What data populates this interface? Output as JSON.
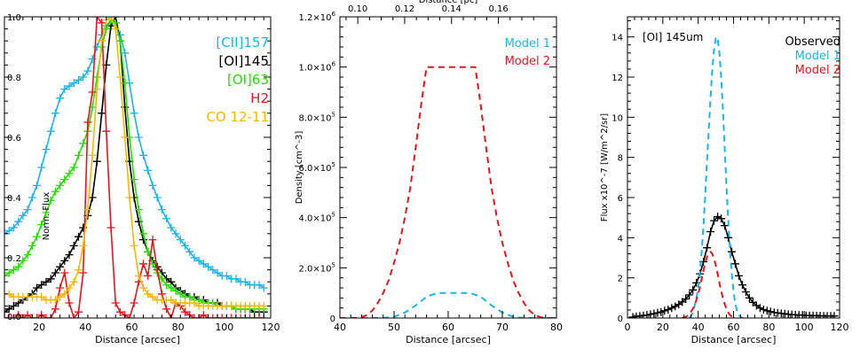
{
  "chart_data": [
    {
      "type": "line",
      "panel": "left",
      "xlabel": "Distance [arcsec]",
      "ylabel": "Norm. Flux",
      "xlim": [
        5,
        120
      ],
      "ylim": [
        0,
        1.0
      ],
      "xticks": [
        20,
        40,
        60,
        80,
        100,
        120
      ],
      "yticks": [
        0.0,
        0.2,
        0.4,
        0.6,
        0.8,
        1.0
      ],
      "ytick_labels": [
        "0.0",
        "0.2",
        "0.4",
        "0.6",
        "0.8",
        "1.0"
      ],
      "grid": false,
      "legend_position": "top-right",
      "series": [
        {
          "name": "[CII]157",
          "color": "#1ab5ec",
          "markers": true,
          "x": [
            5,
            7,
            9,
            11,
            13,
            15,
            17,
            19,
            21,
            23,
            25,
            27,
            29,
            31,
            33,
            35,
            37,
            39,
            41,
            43,
            45,
            47,
            49,
            51,
            53,
            55,
            57,
            59,
            61,
            63,
            65,
            67,
            69,
            71,
            73,
            75,
            77,
            79,
            81,
            83,
            85,
            87,
            89,
            91,
            93,
            95,
            97,
            99,
            101,
            103,
            105,
            107,
            109,
            111,
            113,
            115,
            117
          ],
          "y": [
            0.28,
            0.29,
            0.3,
            0.32,
            0.34,
            0.36,
            0.4,
            0.44,
            0.5,
            0.56,
            0.62,
            0.68,
            0.73,
            0.76,
            0.77,
            0.78,
            0.79,
            0.8,
            0.82,
            0.86,
            0.9,
            0.94,
            0.97,
            0.99,
            0.98,
            0.94,
            0.88,
            0.78,
            0.68,
            0.6,
            0.54,
            0.49,
            0.44,
            0.4,
            0.36,
            0.33,
            0.3,
            0.28,
            0.26,
            0.24,
            0.22,
            0.2,
            0.19,
            0.18,
            0.17,
            0.16,
            0.15,
            0.14,
            0.14,
            0.13,
            0.13,
            0.12,
            0.12,
            0.11,
            0.11,
            0.11,
            0.1
          ]
        },
        {
          "name": "[OI]145",
          "color": "#000000",
          "markers": true,
          "x": [
            5,
            7,
            9,
            11,
            13,
            15,
            17,
            19,
            21,
            23,
            25,
            27,
            29,
            31,
            33,
            35,
            37,
            39,
            41,
            43,
            45,
            47,
            49,
            51,
            53,
            55,
            57,
            59,
            61,
            63,
            65,
            67,
            69,
            71,
            73,
            75,
            77,
            79,
            81,
            83,
            85,
            87,
            89,
            91,
            93,
            95,
            97,
            99,
            101,
            103,
            105,
            107,
            109,
            111,
            113,
            115,
            117
          ],
          "y": [
            0.02,
            0.03,
            0.04,
            0.05,
            0.06,
            0.07,
            0.08,
            0.1,
            0.11,
            0.12,
            0.13,
            0.15,
            0.17,
            0.19,
            0.21,
            0.24,
            0.27,
            0.3,
            0.34,
            0.4,
            0.52,
            0.68,
            0.84,
            0.97,
            1.0,
            0.92,
            0.7,
            0.52,
            0.4,
            0.32,
            0.26,
            0.22,
            0.19,
            0.17,
            0.15,
            0.13,
            0.12,
            0.1,
            0.09,
            0.08,
            0.07,
            0.07,
            0.06,
            0.06,
            0.05,
            0.05,
            0.05,
            0.04,
            0.04,
            0.04,
            0.03,
            0.03,
            0.03,
            0.03,
            0.02,
            0.02,
            0.02
          ]
        },
        {
          "name": "[OI]63",
          "color": "#22e000",
          "markers": true,
          "x": [
            5,
            7,
            9,
            11,
            13,
            15,
            17,
            19,
            21,
            23,
            25,
            27,
            29,
            31,
            33,
            35,
            37,
            39,
            41,
            43,
            45,
            47,
            49,
            51,
            53,
            55,
            57,
            59,
            61,
            63,
            65,
            67,
            69,
            71,
            73,
            75,
            77,
            79,
            81,
            83,
            85,
            87,
            89,
            91,
            93,
            95,
            97,
            99,
            101,
            103,
            105,
            107,
            109,
            111,
            113,
            115,
            117
          ],
          "y": [
            0.14,
            0.15,
            0.16,
            0.17,
            0.19,
            0.21,
            0.24,
            0.27,
            0.31,
            0.35,
            0.39,
            0.42,
            0.44,
            0.46,
            0.48,
            0.5,
            0.54,
            0.58,
            0.62,
            0.7,
            0.8,
            0.9,
            0.96,
            0.99,
            0.98,
            0.92,
            0.78,
            0.6,
            0.46,
            0.36,
            0.28,
            0.22,
            0.18,
            0.15,
            0.13,
            0.11,
            0.1,
            0.09,
            0.08,
            0.07,
            0.07,
            0.06,
            0.06,
            0.05,
            0.05,
            0.05,
            0.04,
            0.04,
            0.04,
            0.04,
            0.03,
            0.03,
            0.03,
            0.03,
            0.03,
            0.03,
            0.03
          ]
        },
        {
          "name": "H2",
          "color": "#e8151d",
          "markers": true,
          "x": [
            5,
            7,
            9,
            11,
            13,
            15,
            17,
            19,
            21,
            23,
            25,
            27,
            29,
            31,
            33,
            35,
            37,
            39,
            41,
            43,
            45,
            47,
            49,
            51,
            53,
            55,
            57,
            59,
            61,
            63,
            65,
            67,
            69,
            71,
            73,
            75,
            77,
            79,
            81,
            83,
            85,
            87,
            89,
            91,
            93,
            95,
            97,
            99,
            101,
            103,
            105,
            107,
            109,
            111,
            113,
            115,
            117
          ],
          "y": [
            0.0,
            0.0,
            0.0,
            0.01,
            0.0,
            0.01,
            0.0,
            0.0,
            0.01,
            0.0,
            0.0,
            0.03,
            0.1,
            0.15,
            0.05,
            0.0,
            0.02,
            0.15,
            0.65,
            0.75,
            1.0,
            0.98,
            0.62,
            0.3,
            0.05,
            0.02,
            0.01,
            0.0,
            0.05,
            0.12,
            0.18,
            0.14,
            0.26,
            0.16,
            0.08,
            0.03,
            0.0,
            0.05,
            0.04,
            0.02,
            0.01,
            0.0,
            0.0,
            0.01,
            0.0,
            0.0,
            0.0,
            0.0,
            0.0,
            0.0,
            0.0,
            0.0,
            0.0,
            0.0,
            0.0,
            0.0,
            0.0
          ]
        },
        {
          "name": "CO 12-11",
          "color": "#f5b800",
          "markers": true,
          "x": [
            5,
            7,
            9,
            11,
            13,
            15,
            17,
            19,
            21,
            23,
            25,
            27,
            29,
            31,
            33,
            35,
            37,
            39,
            41,
            43,
            45,
            47,
            49,
            51,
            53,
            55,
            57,
            59,
            61,
            63,
            65,
            67,
            69,
            71,
            73,
            75,
            77,
            79,
            81,
            83,
            85,
            87,
            89,
            91,
            93,
            95,
            97,
            99,
            101,
            103,
            105,
            107,
            109,
            111,
            113,
            115,
            117
          ],
          "y": [
            0.08,
            0.08,
            0.07,
            0.07,
            0.07,
            0.07,
            0.07,
            0.07,
            0.07,
            0.06,
            0.06,
            0.06,
            0.07,
            0.08,
            0.1,
            0.12,
            0.16,
            0.24,
            0.36,
            0.54,
            0.76,
            0.92,
            0.99,
            1.0,
            0.96,
            0.8,
            0.6,
            0.4,
            0.24,
            0.14,
            0.1,
            0.08,
            0.07,
            0.06,
            0.06,
            0.06,
            0.06,
            0.05,
            0.05,
            0.05,
            0.05,
            0.05,
            0.04,
            0.04,
            0.04,
            0.04,
            0.04,
            0.04,
            0.04,
            0.04,
            0.04,
            0.04,
            0.04,
            0.04,
            0.04,
            0.04,
            0.04
          ]
        }
      ]
    },
    {
      "type": "line",
      "panel": "middle",
      "xlabel": "Distance [arcsec]",
      "ylabel": "Density [cm^-3]",
      "x2label": "Distance [pc]",
      "xlim": [
        40,
        80
      ],
      "ylim": [
        0,
        1200000
      ],
      "xticks": [
        40,
        50,
        60,
        70,
        80
      ],
      "yticks": [
        0,
        200000,
        400000,
        600000,
        800000,
        1000000,
        1200000
      ],
      "ytick_labels": [
        {
          "mantissa": "0",
          "power": ""
        },
        {
          "mantissa": "2.0×10",
          "power": "5"
        },
        {
          "mantissa": "4.0×10",
          "power": "5"
        },
        {
          "mantissa": "6.0×10",
          "power": "5"
        },
        {
          "mantissa": "8.0×10",
          "power": "5"
        },
        {
          "mantissa": "1.0×10",
          "power": "6"
        },
        {
          "mantissa": "1.2×10",
          "power": "6"
        }
      ],
      "x2ticks": [
        0.1,
        0.12,
        0.14,
        0.16
      ],
      "x2tick_labels": [
        "0.10",
        "0.12",
        "0.14",
        "0.16"
      ],
      "x2_arcsec_per_pc": 433,
      "grid": false,
      "legend_position": "top-right",
      "series": [
        {
          "name": "Model 1",
          "color": "#1ab5ec",
          "dashed": true,
          "x": [
            40,
            42,
            44,
            46,
            48,
            50,
            52,
            54,
            56,
            58,
            60,
            62,
            64,
            66,
            68,
            70,
            72,
            74,
            76,
            78,
            80
          ],
          "y": [
            0,
            0,
            0,
            0,
            0,
            5000,
            22000,
            50000,
            85000,
            100000,
            100000,
            100000,
            100000,
            85000,
            50000,
            22000,
            5000,
            0,
            0,
            0,
            0
          ]
        },
        {
          "name": "Model 2",
          "color": "#e8151d",
          "dashed": true,
          "x": [
            40,
            42,
            43.5,
            44,
            45,
            46,
            47,
            48,
            49,
            50,
            51,
            52,
            53,
            54,
            55,
            56,
            58,
            60,
            62,
            64,
            65,
            66,
            67,
            68,
            69,
            70,
            71,
            72,
            73,
            74,
            75,
            76,
            77,
            78,
            80
          ],
          "y": [
            0,
            0,
            0,
            3000,
            12000,
            30000,
            60000,
            100000,
            150000,
            220000,
            300000,
            400000,
            520000,
            680000,
            850000,
            1000000,
            1000000,
            1000000,
            1000000,
            1000000,
            1000000,
            850000,
            680000,
            520000,
            400000,
            300000,
            220000,
            150000,
            100000,
            60000,
            30000,
            12000,
            3000,
            0,
            0
          ]
        }
      ]
    },
    {
      "type": "line",
      "panel": "right",
      "annotation": "[OI] 145um",
      "xlabel": "Distance [arcsec]",
      "ylabel": "Flux x10^-7 [W/m^2/sr]",
      "xlim": [
        0,
        120
      ],
      "ylim": [
        0,
        15
      ],
      "xticks": [
        0,
        20,
        40,
        60,
        80,
        100,
        120
      ],
      "yticks": [
        0,
        2,
        4,
        6,
        8,
        10,
        12,
        14
      ],
      "grid": false,
      "legend_position": "top-right",
      "series": [
        {
          "name": "Observed",
          "color": "#000000",
          "markers": true,
          "x": [
            3,
            5,
            7,
            9,
            11,
            13,
            15,
            17,
            19,
            21,
            23,
            25,
            27,
            29,
            31,
            33,
            35,
            37,
            39,
            41,
            43,
            45,
            47,
            49,
            51,
            53,
            55,
            57,
            59,
            61,
            63,
            65,
            67,
            69,
            71,
            73,
            75,
            77,
            79,
            81,
            83,
            85,
            87,
            89,
            91,
            93,
            95,
            97,
            99,
            101,
            103,
            105,
            107,
            109,
            111,
            113,
            115,
            117
          ],
          "y": [
            0.05,
            0.08,
            0.1,
            0.12,
            0.15,
            0.18,
            0.22,
            0.26,
            0.3,
            0.36,
            0.42,
            0.5,
            0.58,
            0.68,
            0.8,
            0.95,
            1.15,
            1.4,
            1.75,
            2.2,
            2.8,
            3.5,
            4.3,
            4.85,
            5.05,
            4.95,
            4.6,
            4.0,
            3.3,
            2.7,
            2.1,
            1.65,
            1.3,
            1.0,
            0.78,
            0.62,
            0.5,
            0.42,
            0.36,
            0.32,
            0.28,
            0.25,
            0.23,
            0.21,
            0.19,
            0.17,
            0.16,
            0.15,
            0.14,
            0.13,
            0.12,
            0.12,
            0.11,
            0.11,
            0.1,
            0.1,
            0.1,
            0.1
          ]
        },
        {
          "name": "Model 1",
          "color": "#1ab5ec",
          "dashed": true,
          "x": [
            35,
            36,
            37,
            38,
            39,
            40,
            41,
            42,
            43,
            44,
            45,
            46,
            47,
            48,
            49,
            50,
            51,
            52,
            53,
            54,
            55,
            56,
            57,
            58,
            59,
            60,
            61,
            62,
            63,
            64,
            65,
            66,
            67
          ],
          "y": [
            0.0,
            0.1,
            0.3,
            0.6,
            1.0,
            1.5,
            2.3,
            3.3,
            4.6,
            6.1,
            7.8,
            9.4,
            11.0,
            12.4,
            13.4,
            14.0,
            13.9,
            13.2,
            12.0,
            10.4,
            8.5,
            6.6,
            4.9,
            3.4,
            2.2,
            1.3,
            0.7,
            0.35,
            0.15,
            0.05,
            0.0,
            0.0,
            0.0
          ]
        },
        {
          "name": "Model 2",
          "color": "#e8151d",
          "dashed": true,
          "x": [
            31,
            33,
            35,
            37,
            38,
            39,
            40,
            41,
            42,
            43,
            44,
            45,
            46,
            47,
            48,
            49,
            50,
            51,
            52,
            53,
            54,
            55,
            56,
            57,
            58,
            59,
            60,
            61
          ],
          "y": [
            0.0,
            0.05,
            0.2,
            0.45,
            0.65,
            0.9,
            1.2,
            1.55,
            1.95,
            2.35,
            2.75,
            3.05,
            3.25,
            3.3,
            3.2,
            2.95,
            2.6,
            2.2,
            1.75,
            1.35,
            1.0,
            0.7,
            0.45,
            0.28,
            0.15,
            0.07,
            0.02,
            0.0
          ]
        }
      ]
    }
  ]
}
